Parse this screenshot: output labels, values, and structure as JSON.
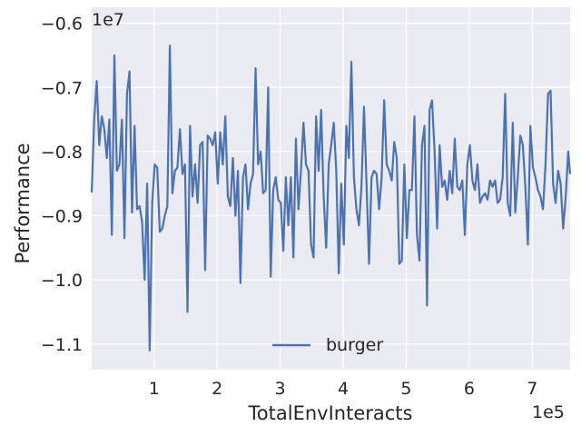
{
  "chart_data": {
    "type": "line",
    "xlabel": "TotalEnvInteracts",
    "ylabel": "Performance",
    "x_offset_text": "1e5",
    "y_offset_text": "1e7",
    "xlim": [
      0.01,
      7.6
    ],
    "ylim": [
      -1.14,
      -0.575
    ],
    "x_ticks": [
      1,
      2,
      3,
      4,
      5,
      6,
      7
    ],
    "x_tick_labels": [
      "1",
      "2",
      "3",
      "4",
      "5",
      "6",
      "7"
    ],
    "y_ticks": [
      -1.1,
      -1.0,
      -0.9,
      -0.8,
      -0.7,
      -0.6
    ],
    "y_tick_labels": [
      "−1.1",
      "−1.0",
      "−0.9",
      "−0.8",
      "−0.7",
      "−0.6"
    ],
    "grid": true,
    "legend_position": "bottom-center",
    "line_color": "#4c72b0",
    "background_color": "#eaeaf2",
    "series": [
      {
        "name": "burger",
        "points": [
          [
            0.01,
            -0.864
          ],
          [
            0.05,
            -0.75
          ],
          [
            0.09,
            -0.69
          ],
          [
            0.13,
            -0.79
          ],
          [
            0.17,
            -0.745
          ],
          [
            0.21,
            -0.765
          ],
          [
            0.25,
            -0.81
          ],
          [
            0.29,
            -0.75
          ],
          [
            0.33,
            -0.93
          ],
          [
            0.37,
            -0.65
          ],
          [
            0.41,
            -0.83
          ],
          [
            0.45,
            -0.82
          ],
          [
            0.49,
            -0.75
          ],
          [
            0.53,
            -0.935
          ],
          [
            0.57,
            -0.71
          ],
          [
            0.61,
            -0.675
          ],
          [
            0.65,
            -0.895
          ],
          [
            0.69,
            -0.76
          ],
          [
            0.73,
            -0.89
          ],
          [
            0.77,
            -0.885
          ],
          [
            0.81,
            -0.91
          ],
          [
            0.85,
            -1.0
          ],
          [
            0.89,
            -0.85
          ],
          [
            0.93,
            -1.11
          ],
          [
            0.97,
            -0.88
          ],
          [
            1.01,
            -0.82
          ],
          [
            1.05,
            -0.825
          ],
          [
            1.09,
            -0.925
          ],
          [
            1.13,
            -0.92
          ],
          [
            1.17,
            -0.9
          ],
          [
            1.21,
            -0.885
          ],
          [
            1.25,
            -0.635
          ],
          [
            1.29,
            -0.865
          ],
          [
            1.33,
            -0.83
          ],
          [
            1.37,
            -0.825
          ],
          [
            1.41,
            -0.765
          ],
          [
            1.45,
            -0.835
          ],
          [
            1.49,
            -0.82
          ],
          [
            1.53,
            -1.05
          ],
          [
            1.57,
            -0.76
          ],
          [
            1.61,
            -0.87
          ],
          [
            1.65,
            -0.82
          ],
          [
            1.69,
            -0.88
          ],
          [
            1.73,
            -0.79
          ],
          [
            1.77,
            -0.785
          ],
          [
            1.81,
            -0.985
          ],
          [
            1.85,
            -0.775
          ],
          [
            1.89,
            -0.78
          ],
          [
            1.93,
            -0.79
          ],
          [
            1.97,
            -0.77
          ],
          [
            2.01,
            -0.85
          ],
          [
            2.05,
            -0.77
          ],
          [
            2.09,
            -0.82
          ],
          [
            2.13,
            -0.745
          ],
          [
            2.17,
            -0.87
          ],
          [
            2.21,
            -0.885
          ],
          [
            2.25,
            -0.81
          ],
          [
            2.29,
            -0.9
          ],
          [
            2.33,
            -0.83
          ],
          [
            2.37,
            -1.005
          ],
          [
            2.41,
            -0.84
          ],
          [
            2.45,
            -0.82
          ],
          [
            2.49,
            -0.89
          ],
          [
            2.53,
            -0.85
          ],
          [
            2.57,
            -0.835
          ],
          [
            2.61,
            -0.67
          ],
          [
            2.65,
            -0.82
          ],
          [
            2.69,
            -0.8
          ],
          [
            2.73,
            -0.865
          ],
          [
            2.77,
            -0.86
          ],
          [
            2.81,
            -0.7
          ],
          [
            2.85,
            -0.995
          ],
          [
            2.89,
            -0.86
          ],
          [
            2.93,
            -0.84
          ],
          [
            2.97,
            -0.875
          ],
          [
            3.01,
            -0.88
          ],
          [
            3.05,
            -0.955
          ],
          [
            3.09,
            -0.84
          ],
          [
            3.13,
            -0.915
          ],
          [
            3.17,
            -0.84
          ],
          [
            3.21,
            -0.965
          ],
          [
            3.25,
            -0.78
          ],
          [
            3.29,
            -0.89
          ],
          [
            3.33,
            -0.83
          ],
          [
            3.37,
            -0.755
          ],
          [
            3.41,
            -0.82
          ],
          [
            3.45,
            -0.83
          ],
          [
            3.49,
            -0.945
          ],
          [
            3.53,
            -0.965
          ],
          [
            3.57,
            -0.745
          ],
          [
            3.61,
            -0.83
          ],
          [
            3.65,
            -0.735
          ],
          [
            3.69,
            -0.87
          ],
          [
            3.73,
            -0.95
          ],
          [
            3.77,
            -0.82
          ],
          [
            3.81,
            -0.79
          ],
          [
            3.85,
            -0.755
          ],
          [
            3.89,
            -0.83
          ],
          [
            3.93,
            -0.99
          ],
          [
            3.97,
            -0.85
          ],
          [
            4.01,
            -0.945
          ],
          [
            4.05,
            -0.76
          ],
          [
            4.09,
            -0.81
          ],
          [
            4.13,
            -0.66
          ],
          [
            4.17,
            -0.84
          ],
          [
            4.21,
            -0.89
          ],
          [
            4.25,
            -0.915
          ],
          [
            4.29,
            -0.855
          ],
          [
            4.33,
            -0.73
          ],
          [
            4.37,
            -0.85
          ],
          [
            4.41,
            -0.975
          ],
          [
            4.45,
            -0.84
          ],
          [
            4.49,
            -0.83
          ],
          [
            4.53,
            -0.835
          ],
          [
            4.57,
            -0.89
          ],
          [
            4.61,
            -0.84
          ],
          [
            4.65,
            -0.72
          ],
          [
            4.69,
            -0.82
          ],
          [
            4.73,
            -0.83
          ],
          [
            4.77,
            -0.845
          ],
          [
            4.81,
            -0.785
          ],
          [
            4.85,
            -0.81
          ],
          [
            4.89,
            -0.975
          ],
          [
            4.93,
            -0.97
          ],
          [
            4.97,
            -0.82
          ],
          [
            5.01,
            -0.935
          ],
          [
            5.05,
            -0.86
          ],
          [
            5.09,
            -0.86
          ],
          [
            5.13,
            -0.745
          ],
          [
            5.17,
            -0.93
          ],
          [
            5.21,
            -0.97
          ],
          [
            5.25,
            -0.79
          ],
          [
            5.29,
            -0.76
          ],
          [
            5.33,
            -1.04
          ],
          [
            5.37,
            -0.735
          ],
          [
            5.41,
            -0.72
          ],
          [
            5.45,
            -0.8
          ],
          [
            5.49,
            -0.92
          ],
          [
            5.53,
            -0.79
          ],
          [
            5.57,
            -0.855
          ],
          [
            5.61,
            -0.845
          ],
          [
            5.65,
            -0.875
          ],
          [
            5.69,
            -0.83
          ],
          [
            5.73,
            -0.865
          ],
          [
            5.77,
            -0.78
          ],
          [
            5.81,
            -0.855
          ],
          [
            5.85,
            -0.86
          ],
          [
            5.89,
            -0.845
          ],
          [
            5.93,
            -0.93
          ],
          [
            5.97,
            -0.82
          ],
          [
            6.01,
            -0.79
          ],
          [
            6.05,
            -0.845
          ],
          [
            6.09,
            -0.86
          ],
          [
            6.13,
            -0.82
          ],
          [
            6.17,
            -0.88
          ],
          [
            6.21,
            -0.87
          ],
          [
            6.25,
            -0.865
          ],
          [
            6.29,
            -0.875
          ],
          [
            6.33,
            -0.845
          ],
          [
            6.37,
            -0.855
          ],
          [
            6.41,
            -0.845
          ],
          [
            6.45,
            -0.88
          ],
          [
            6.49,
            -0.875
          ],
          [
            6.53,
            -0.84
          ],
          [
            6.57,
            -0.71
          ],
          [
            6.61,
            -0.88
          ],
          [
            6.65,
            -0.9
          ],
          [
            6.69,
            -0.755
          ],
          [
            6.73,
            -0.895
          ],
          [
            6.77,
            -0.84
          ],
          [
            6.81,
            -0.775
          ],
          [
            6.85,
            -0.79
          ],
          [
            6.89,
            -0.855
          ],
          [
            6.93,
            -0.945
          ],
          [
            6.97,
            -0.76
          ],
          [
            7.01,
            -0.825
          ],
          [
            7.05,
            -0.84
          ],
          [
            7.09,
            -0.86
          ],
          [
            7.13,
            -0.87
          ],
          [
            7.17,
            -0.89
          ],
          [
            7.21,
            -0.82
          ],
          [
            7.25,
            -0.71
          ],
          [
            7.29,
            -0.705
          ],
          [
            7.33,
            -0.85
          ],
          [
            7.37,
            -0.88
          ],
          [
            7.41,
            -0.83
          ],
          [
            7.45,
            -0.85
          ],
          [
            7.49,
            -0.92
          ],
          [
            7.53,
            -0.87
          ],
          [
            7.57,
            -0.8
          ],
          [
            7.6,
            -0.835
          ]
        ]
      }
    ]
  }
}
